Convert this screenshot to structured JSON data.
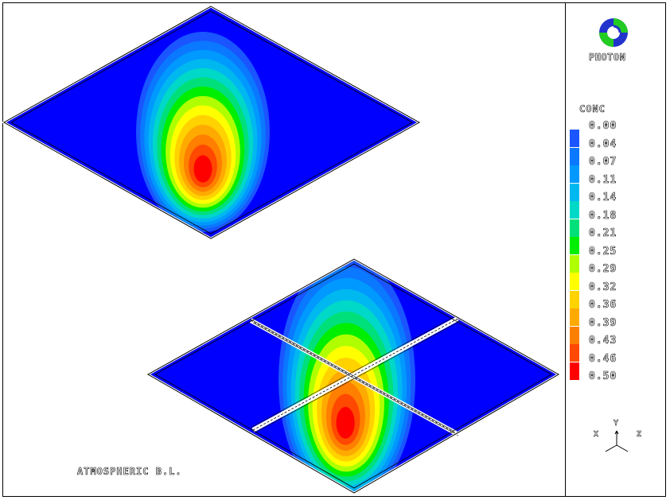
{
  "caption": "ATMOSPHERIC B.L.",
  "brand": {
    "name": "PHOTON"
  },
  "legend": {
    "title": "CONC",
    "levels": [
      {
        "label": "0.00",
        "color": "#0000ff"
      },
      {
        "label": "0.04",
        "color": "#1a55ff"
      },
      {
        "label": "0.07",
        "color": "#0a78ff"
      },
      {
        "label": "0.11",
        "color": "#0099ff"
      },
      {
        "label": "0.14",
        "color": "#00b8f0"
      },
      {
        "label": "0.18",
        "color": "#00d8c8"
      },
      {
        "label": "0.21",
        "color": "#00e07a"
      },
      {
        "label": "0.25",
        "color": "#00ee00"
      },
      {
        "label": "0.29",
        "color": "#b0ff00"
      },
      {
        "label": "0.32",
        "color": "#ffff00"
      },
      {
        "label": "0.36",
        "color": "#ffd200"
      },
      {
        "label": "0.39",
        "color": "#ffaa00"
      },
      {
        "label": "0.43",
        "color": "#ff7f00"
      },
      {
        "label": "0.46",
        "color": "#ff4800"
      },
      {
        "label": "0.50",
        "color": "#ff0000"
      }
    ]
  },
  "axes": {
    "x": "X",
    "y": "Y",
    "z": "Z"
  }
}
